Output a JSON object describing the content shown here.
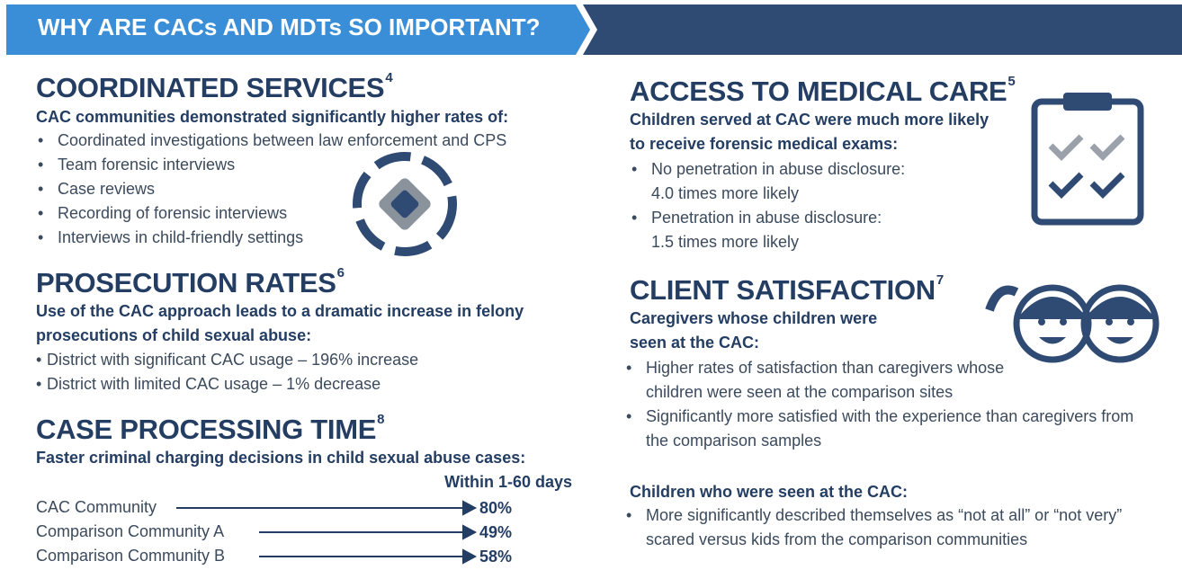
{
  "header": {
    "title": "WHY ARE CACs AND MDTs SO IMPORTANT?"
  },
  "coordinated_services": {
    "title": "COORDINATED SERVICES",
    "ref": "4",
    "intro": "CAC communities demonstrated significantly higher rates of:",
    "items": [
      "Coordinated investigations between law enforcement and CPS",
      "Team forensic interviews",
      "Case reviews",
      "Recording of forensic interviews",
      "Interviews in child-friendly settings"
    ]
  },
  "prosecution_rates": {
    "title": "PROSECUTION RATES",
    "ref": "6",
    "intro": "Use of the CAC approach leads to a dramatic increase in felony prosecutions of child sexual abuse:",
    "items": [
      "District with significant CAC usage – 196% increase",
      "District with limited CAC usage – 1% decrease"
    ]
  },
  "case_processing_time": {
    "title": "CASE PROCESSING TIME",
    "ref": "8",
    "intro": "Faster criminal charging decisions in child sexual abuse cases:",
    "column_header": "Within 1-60 days",
    "rows": [
      {
        "label": "CAC Community",
        "value": "80%"
      },
      {
        "label": "Comparison Community A",
        "value": "49%"
      },
      {
        "label": "Comparison Community B",
        "value": "58%"
      }
    ]
  },
  "access_to_medical_care": {
    "title": "ACCESS TO MEDICAL CARE",
    "ref": "5",
    "intro": "Children served at CAC were much more likely to receive forensic medical exams:",
    "items": [
      {
        "label": "No penetration in abuse disclosure:",
        "detail": "4.0 times more likely"
      },
      {
        "label": "Penetration in abuse disclosure:",
        "detail": "1.5 times more likely"
      }
    ]
  },
  "client_satisfaction": {
    "title": "CLIENT SATISFACTION",
    "ref": "7",
    "intro": "Caregivers whose children were seen at the CAC:",
    "items": [
      "Higher rates of satisfaction than caregivers whose children were seen at the comparison sites",
      "Significantly more satisfied with the experience than caregivers from the comparison samples"
    ],
    "subheading": "Children who were seen at the CAC:",
    "sub_items": [
      "More significantly described themselves as “not at all” or “not very” scared versus kids from the comparison communities"
    ]
  }
}
